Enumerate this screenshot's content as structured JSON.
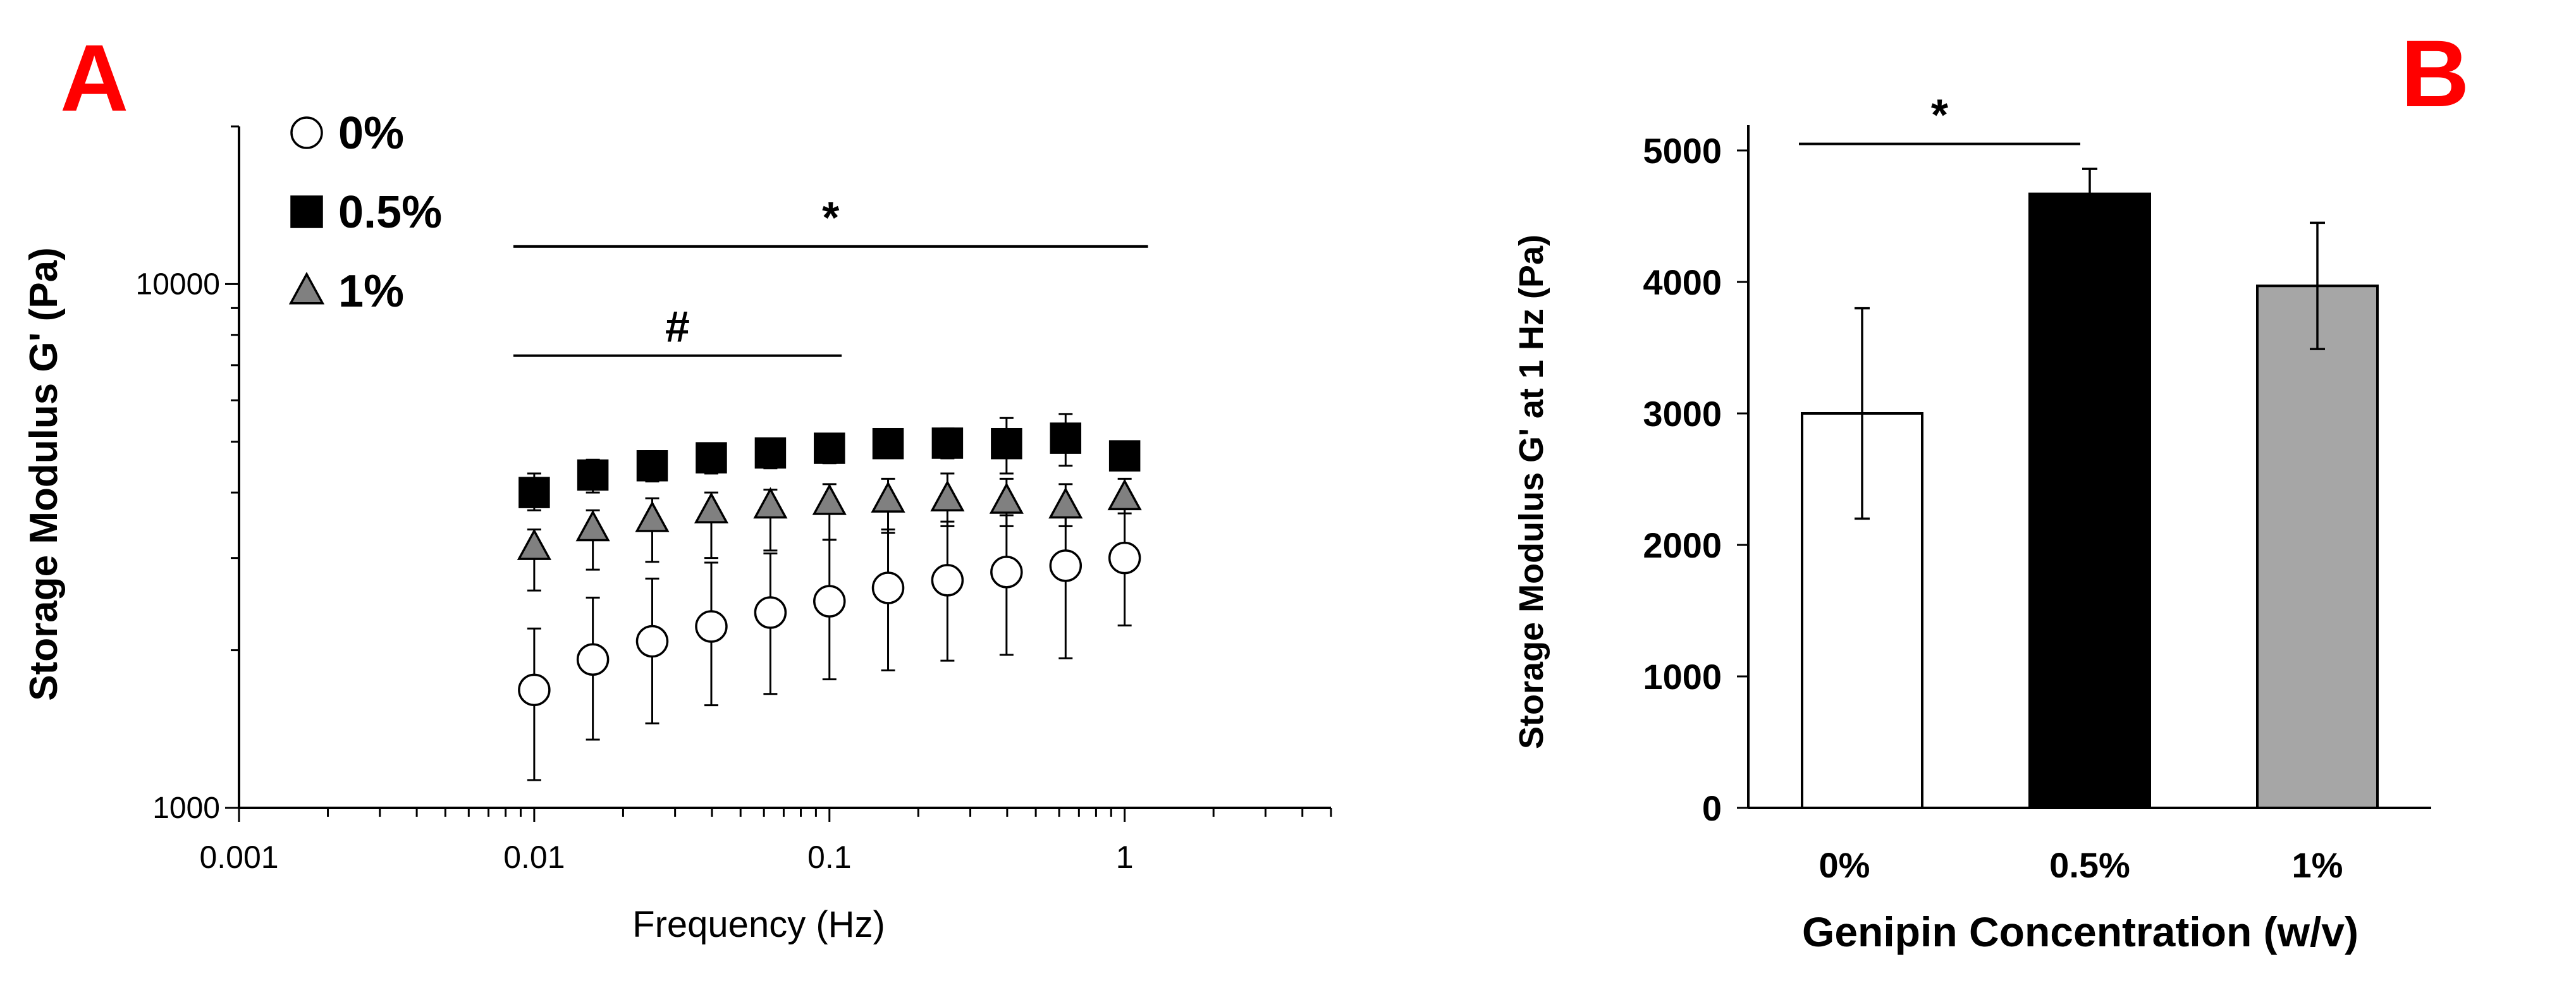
{
  "colors": {
    "panel_letter": "#ff0000",
    "series_0": "#ffffff",
    "series_05": "#000000",
    "series_1": "#808080",
    "stroke": "#000000"
  },
  "chart_data": [
    {
      "type": "scatter",
      "panel_label": "A",
      "xlabel": "Frequency (Hz)",
      "ylabel": "Storage Modulus G' (Pa)",
      "x_scale": "log",
      "y_scale": "log",
      "xlim": [
        0.001,
        5
      ],
      "ylim": [
        1000,
        20000
      ],
      "x_ticks": [
        "0.001",
        "0.01",
        "0.1",
        "1"
      ],
      "y_ticks": [
        "1000",
        "10000"
      ],
      "grid": false,
      "legend_position": "top-left",
      "x": [
        0.01,
        0.0158,
        0.0251,
        0.0398,
        0.0631,
        0.1,
        0.158,
        0.251,
        0.398,
        0.631,
        1.0
      ],
      "series": [
        {
          "name": "0%",
          "marker": "circle",
          "color": "#ffffff",
          "values": [
            1680,
            1920,
            2080,
            2220,
            2360,
            2480,
            2630,
            2720,
            2820,
            2900,
            3000
          ],
          "err_upper": [
            2200,
            2520,
            2740,
            2940,
            3060,
            3250,
            3400,
            3520,
            3620,
            3750,
            3800
          ],
          "err_lower": [
            1130,
            1350,
            1450,
            1570,
            1650,
            1760,
            1830,
            1910,
            1960,
            1930,
            2230
          ]
        },
        {
          "name": "0.5%",
          "marker": "square",
          "color": "#000000",
          "values": [
            4000,
            4320,
            4500,
            4660,
            4760,
            4860,
            4960,
            4970,
            4960,
            5080,
            4700
          ],
          "err_upper": [
            4350,
            4620,
            4800,
            4950,
            5030,
            5150,
            5250,
            5300,
            5550,
            5650,
            4950
          ],
          "err_lower": [
            3700,
            4000,
            4200,
            4350,
            4450,
            4550,
            4650,
            4650,
            4350,
            4500,
            4450
          ]
        },
        {
          "name": "1%",
          "marker": "triangle",
          "color": "#808080",
          "values": [
            3150,
            3420,
            3560,
            3700,
            3780,
            3840,
            3880,
            3900,
            3860,
            3780,
            3920
          ],
          "err_upper": [
            3400,
            3700,
            3900,
            4000,
            4050,
            4150,
            4250,
            4350,
            4250,
            4150,
            4250
          ],
          "err_lower": [
            2600,
            2850,
            2950,
            3000,
            3100,
            3250,
            3350,
            3450,
            3450,
            3450,
            3650
          ]
        }
      ],
      "annotations": [
        {
          "text": "*",
          "x_from": 0.0085,
          "x_to": 1.2,
          "y": 11800
        },
        {
          "text": "#",
          "x_from": 0.0085,
          "x_to": 0.11,
          "y": 7300
        }
      ]
    },
    {
      "type": "bar",
      "panel_label": "B",
      "xlabel": "Genipin Concentration (w/v)",
      "ylabel": "Storage Modulus G' at 1 Hz (Pa)",
      "ylim": [
        0,
        5000
      ],
      "y_ticks": [
        "0",
        "1000",
        "2000",
        "3000",
        "4000",
        "5000"
      ],
      "grid": false,
      "categories": [
        "0%",
        "0.5%",
        "1%"
      ],
      "values": [
        3000,
        4670,
        3970
      ],
      "errors": [
        800,
        190,
        480
      ],
      "colors": [
        "#ffffff",
        "#000000",
        "#a6a6a6"
      ],
      "annotations": [
        {
          "text": "*",
          "from_category": 0,
          "to_category": 1,
          "y": 5050
        }
      ]
    }
  ]
}
